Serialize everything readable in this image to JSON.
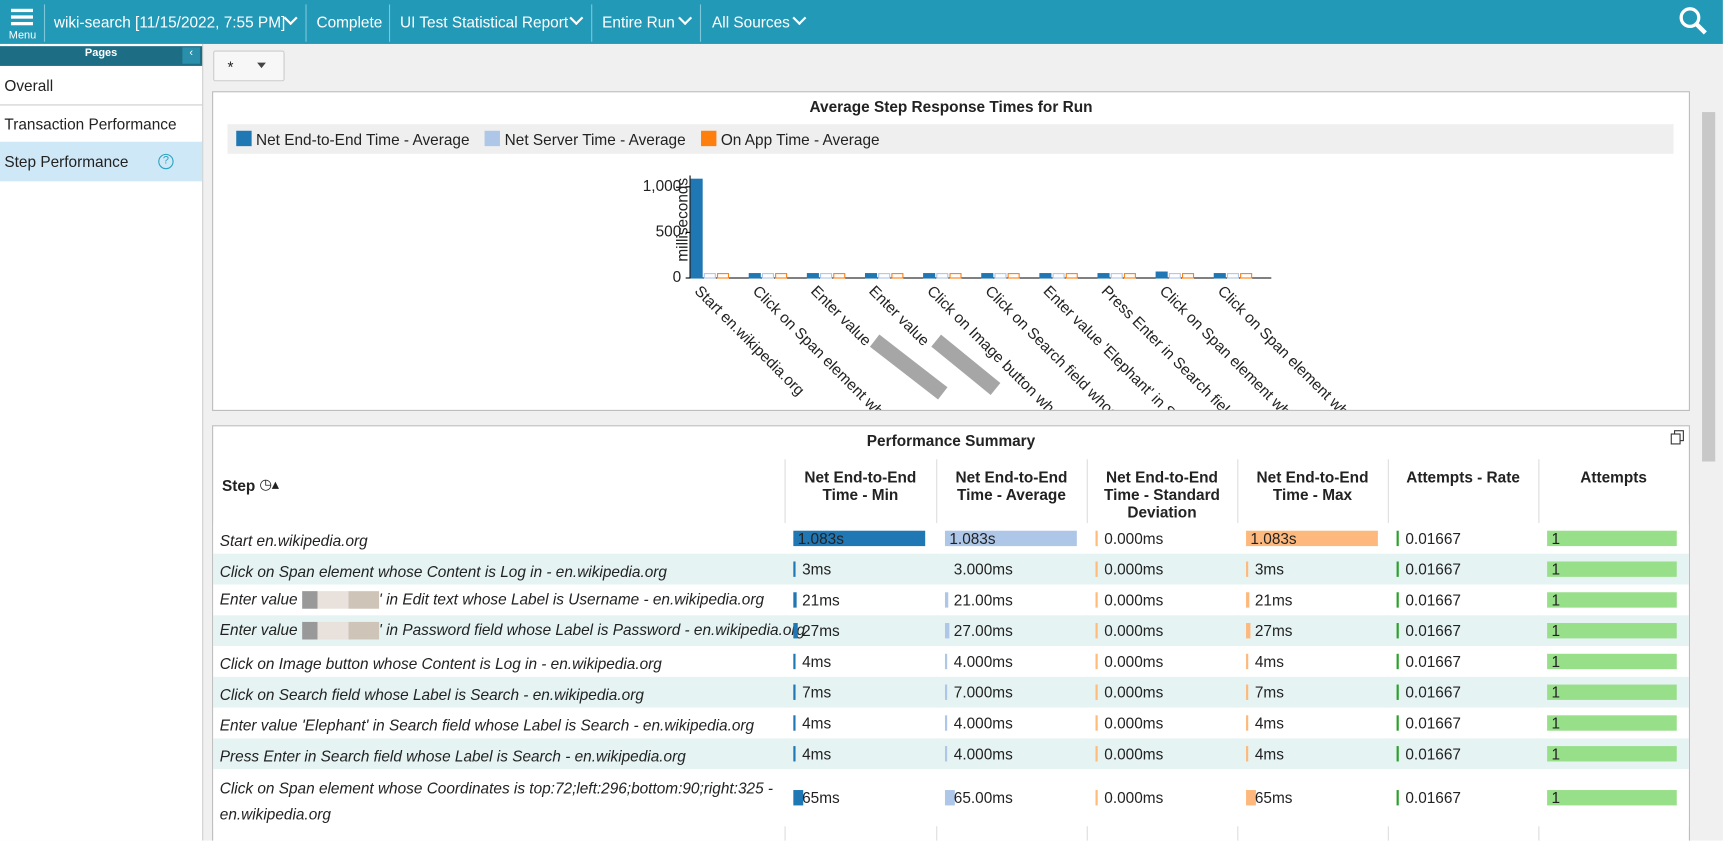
{
  "header": {
    "menu_label": "Menu",
    "items": [
      "wiki-search [11/15/2022, 7:55 PM]",
      "Complete",
      "UI Test Statistical Report",
      "Entire Run",
      "All Sources"
    ]
  },
  "sidebar": {
    "title": "Pages",
    "items": [
      "Overall",
      "Transaction Performance",
      "Step Performance"
    ],
    "help": "?"
  },
  "filter": {
    "value": "*"
  },
  "chart_data": {
    "type": "bar",
    "title": "Average Step Response Times for Run",
    "y_label": "milliseconds",
    "categories": [
      "Start en.wikipedia.org",
      "Click on Span element whose",
      "Enter value",
      "Enter value",
      "Click on Image button whose C",
      "Click on Search field whose L",
      "Enter value 'Elephant' in Sear",
      "Press Enter in Search field wh",
      "Click on Span element whose",
      "Click on Span element whose"
    ],
    "series": [
      {
        "name": "Net End-to-End Time - Average",
        "color": "#1f77b4",
        "values": [
          1083,
          3,
          21,
          27,
          4,
          7,
          4,
          4,
          65,
          4
        ]
      },
      {
        "name": "Net Server Time - Average",
        "color": "#aec7e8",
        "values": [
          0,
          0,
          0,
          0,
          0,
          0,
          0,
          0,
          0,
          0
        ]
      },
      {
        "name": "On App Time - Average",
        "color": "#ff7f0e",
        "values": [
          0,
          0,
          0,
          0,
          0,
          0,
          0,
          0,
          0,
          0
        ]
      }
    ],
    "ylim": [
      0,
      1100
    ],
    "yticks": [
      0,
      500,
      {
        "value": 1000,
        "label": "1,000"
      }
    ],
    "grid": false
  },
  "table": {
    "title": "Performance Summary",
    "columns": [
      "Step",
      "Net End-to-End Time - Min",
      "Net End-to-End Time - Average",
      "Net End-to-End Time - Standard Deviation",
      "Net End-to-End Time - Max",
      "Attempts - Rate",
      "Attempts"
    ],
    "rows": [
      [
        "Start en.wikipedia.org",
        "1.083s",
        "1.083s",
        "0.000ms",
        "1.083s",
        "0.01667",
        "1"
      ],
      [
        "Click on Span element whose Content is Log in - en.wikipedia.org",
        "3ms",
        "3.000ms",
        "0.000ms",
        "3ms",
        "0.01667",
        "1"
      ],
      [
        [
          "Enter value",
          "' in Edit text whose Label is Username - en.wikipedia.org"
        ],
        "21ms",
        "21.00ms",
        "0.000ms",
        "21ms",
        "0.01667",
        "1"
      ],
      [
        [
          "Enter value",
          "' in Password field whose Label is Password - en.wikipedia.org"
        ],
        "27ms",
        "27.00ms",
        "0.000ms",
        "27ms",
        "0.01667",
        "1"
      ],
      [
        "Click on Image button whose Content is Log in - en.wikipedia.org",
        "4ms",
        "4.000ms",
        "0.000ms",
        "4ms",
        "0.01667",
        "1"
      ],
      [
        "Click on Search field whose Label is Search - en.wikipedia.org",
        "7ms",
        "7.000ms",
        "0.000ms",
        "7ms",
        "0.01667",
        "1"
      ],
      [
        "Enter value 'Elephant' in Search field whose Label is Search - en.wikipedia.org",
        "4ms",
        "4.000ms",
        "0.000ms",
        "4ms",
        "0.01667",
        "1"
      ],
      [
        "Press Enter in Search field whose Label is Search - en.wikipedia.org",
        "4ms",
        "4.000ms",
        "0.000ms",
        "4ms",
        "0.01667",
        "1"
      ],
      [
        "Click on Span element whose Coordinates is top:72;left:296;bottom:90;right:325 - en.wikipedia.org",
        "65ms",
        "65.00ms",
        "0.000ms",
        "65ms",
        "0.01667",
        "1"
      ]
    ]
  }
}
